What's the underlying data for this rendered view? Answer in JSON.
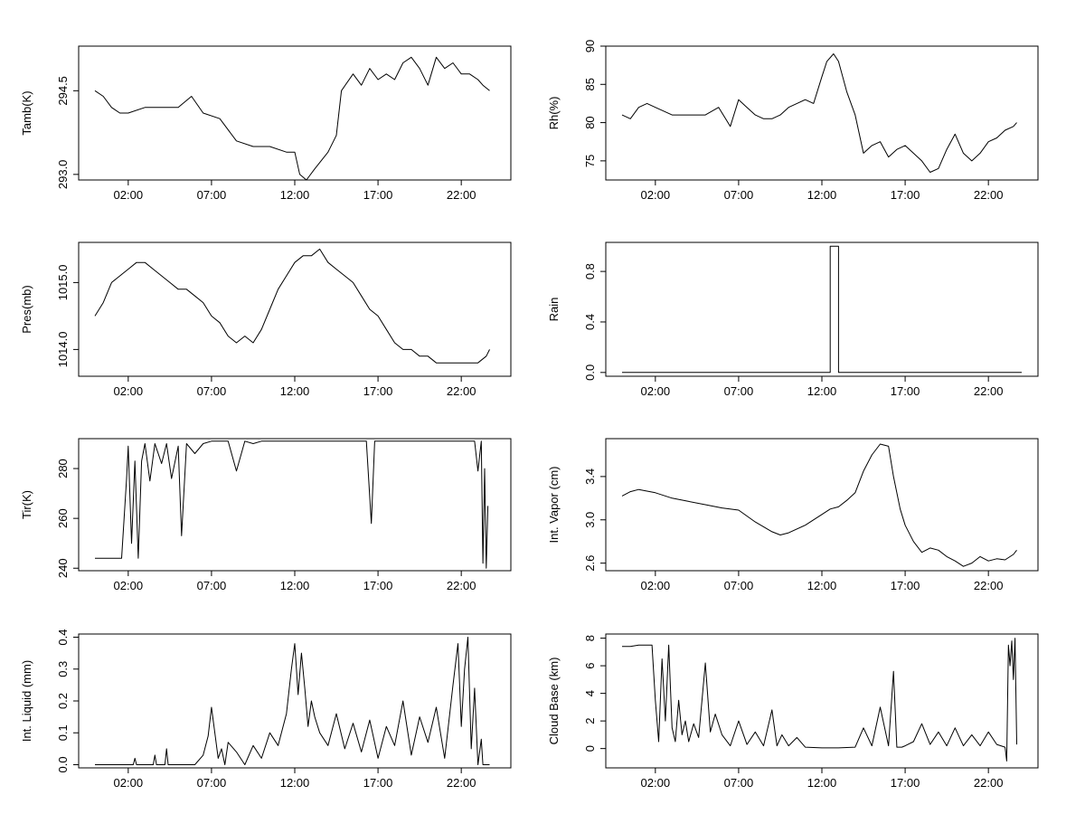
{
  "figure": {
    "background": "#ffffff",
    "line_color": "#000000"
  },
  "chart_data": [
    {
      "type": "line",
      "title": "",
      "xlabel": "",
      "ylabel": "Tamb(K)",
      "xlim": [
        0,
        24
      ],
      "x_tick_values": [
        2,
        7,
        12,
        17,
        22
      ],
      "x_tick_labels": [
        "02:00",
        "07:00",
        "12:00",
        "17:00",
        "22:00"
      ],
      "ylim": [
        292.9,
        295.3
      ],
      "y_tick_values": [
        293.0,
        294.5
      ],
      "y_tick_labels": [
        "293.0",
        "294.5"
      ],
      "series": [
        {
          "x": [
            0,
            0.5,
            1,
            1.5,
            2,
            3,
            4,
            5,
            5.8,
            6.5,
            7.5,
            8.5,
            9.5,
            10.5,
            11.5,
            12,
            12.3,
            12.7,
            13.2,
            14,
            14.5,
            14.8,
            15.5,
            16,
            16.5,
            17,
            17.5,
            18,
            18.5,
            19,
            19.5,
            20,
            20.5,
            21,
            21.5,
            22,
            22.5,
            23,
            23.3,
            23.7
          ],
          "y": [
            294.5,
            294.4,
            294.2,
            294.1,
            294.1,
            294.2,
            294.2,
            294.2,
            294.4,
            294.1,
            294.0,
            293.6,
            293.5,
            293.5,
            293.4,
            293.4,
            293.0,
            292.9,
            293.1,
            293.4,
            293.7,
            294.5,
            294.8,
            294.6,
            294.9,
            294.7,
            294.8,
            294.7,
            295.0,
            295.1,
            294.9,
            294.6,
            295.1,
            294.9,
            295.0,
            294.8,
            294.8,
            294.7,
            294.6,
            294.5
          ]
        }
      ]
    },
    {
      "type": "line",
      "title": "",
      "xlabel": "",
      "ylabel": "Rh(%)",
      "xlim": [
        0,
        24
      ],
      "x_tick_values": [
        2,
        7,
        12,
        17,
        22
      ],
      "x_tick_labels": [
        "02:00",
        "07:00",
        "12:00",
        "17:00",
        "22:00"
      ],
      "ylim": [
        72.5,
        90
      ],
      "y_tick_values": [
        75,
        80,
        85,
        90
      ],
      "y_tick_labels": [
        "75",
        "80",
        "85",
        "90"
      ],
      "series": [
        {
          "x": [
            0,
            0.5,
            1,
            1.5,
            2,
            3,
            4,
            5,
            5.8,
            6.5,
            7,
            7.5,
            8,
            8.5,
            9,
            9.5,
            10,
            10.5,
            11,
            11.5,
            12,
            12.3,
            12.7,
            13,
            13.5,
            14,
            14.5,
            15,
            15.5,
            16,
            16.5,
            17,
            17.5,
            18,
            18.5,
            19,
            19.5,
            20,
            20.5,
            21,
            21.5,
            22,
            22.5,
            23,
            23.5,
            23.7
          ],
          "y": [
            81.0,
            80.5,
            82.0,
            82.5,
            82.0,
            81.0,
            81.0,
            81.0,
            82.0,
            79.5,
            83.0,
            82.0,
            81.0,
            80.5,
            80.5,
            81.0,
            82.0,
            82.5,
            83.0,
            82.5,
            86.0,
            88.0,
            89.0,
            88.0,
            84.0,
            81.0,
            76.0,
            77.0,
            77.5,
            75.5,
            76.5,
            77.0,
            76.0,
            75.0,
            73.5,
            74.0,
            76.5,
            78.5,
            76.0,
            75.0,
            76.0,
            77.5,
            78.0,
            79.0,
            79.5,
            80.0
          ]
        }
      ]
    },
    {
      "type": "line",
      "title": "",
      "xlabel": "",
      "ylabel": "Pres(mb)",
      "xlim": [
        0,
        24
      ],
      "x_tick_values": [
        2,
        7,
        12,
        17,
        22
      ],
      "x_tick_labels": [
        "02:00",
        "07:00",
        "12:00",
        "17:00",
        "22:00"
      ],
      "ylim": [
        1013.6,
        1015.6
      ],
      "y_tick_values": [
        1014.0,
        1015.0
      ],
      "y_tick_labels": [
        "1014.0",
        "1015.0"
      ],
      "series": [
        {
          "x": [
            0,
            0.5,
            1,
            1.5,
            2,
            2.5,
            3,
            3.5,
            4,
            4.5,
            5,
            5.5,
            6,
            6.5,
            7,
            7.5,
            8,
            8.5,
            9,
            9.5,
            10,
            10.5,
            11,
            11.5,
            12,
            12.5,
            13,
            13.5,
            14,
            14.5,
            15,
            15.5,
            16,
            16.5,
            17,
            17.5,
            18,
            18.5,
            19,
            19.5,
            20,
            20.5,
            21,
            21.5,
            22,
            22.5,
            23,
            23.5,
            23.7
          ],
          "y": [
            1014.5,
            1014.7,
            1015.0,
            1015.1,
            1015.2,
            1015.3,
            1015.3,
            1015.2,
            1015.1,
            1015.0,
            1014.9,
            1014.9,
            1014.8,
            1014.7,
            1014.5,
            1014.4,
            1014.2,
            1014.1,
            1014.2,
            1014.1,
            1014.3,
            1014.6,
            1014.9,
            1015.1,
            1015.3,
            1015.4,
            1015.4,
            1015.5,
            1015.3,
            1015.2,
            1015.1,
            1015.0,
            1014.8,
            1014.6,
            1014.5,
            1014.3,
            1014.1,
            1014.0,
            1014.0,
            1013.9,
            1013.9,
            1013.8,
            1013.8,
            1013.8,
            1013.8,
            1013.8,
            1013.8,
            1013.9,
            1014.0
          ]
        }
      ]
    },
    {
      "type": "line",
      "title": "",
      "xlabel": "",
      "ylabel": "Rain",
      "xlim": [
        0,
        24
      ],
      "x_tick_values": [
        2,
        7,
        12,
        17,
        22
      ],
      "x_tick_labels": [
        "02:00",
        "07:00",
        "12:00",
        "17:00",
        "22:00"
      ],
      "ylim": [
        -0.03,
        1.03
      ],
      "y_tick_values": [
        0.0,
        0.4,
        0.8
      ],
      "y_tick_labels": [
        "0.0",
        "0.4",
        "0.8"
      ],
      "series": [
        {
          "x": [
            0,
            12.5,
            12.5,
            13.0,
            13.0,
            24
          ],
          "y": [
            0,
            0,
            1,
            1,
            0,
            0
          ]
        }
      ]
    },
    {
      "type": "line",
      "title": "",
      "xlabel": "",
      "ylabel": "Tir(K)",
      "xlim": [
        0,
        24
      ],
      "x_tick_values": [
        2,
        7,
        12,
        17,
        22
      ],
      "x_tick_labels": [
        "02:00",
        "07:00",
        "12:00",
        "17:00",
        "22:00"
      ],
      "ylim": [
        239,
        292
      ],
      "y_tick_values": [
        240,
        260,
        280
      ],
      "y_tick_labels": [
        "240",
        "260",
        "280"
      ],
      "series": [
        {
          "x": [
            0,
            1,
            1.6,
            1.9,
            2.0,
            2.2,
            2.4,
            2.6,
            2.8,
            3.0,
            3.3,
            3.6,
            4.0,
            4.3,
            4.6,
            5.0,
            5.2,
            5.5,
            6.0,
            6.5,
            7.0,
            8.0,
            8.5,
            9.0,
            9.5,
            10.0,
            12.0,
            14.0,
            15.5,
            16.0,
            16.3,
            16.6,
            16.8,
            17.2,
            18.0,
            19.0,
            20.0,
            21.0,
            22.0,
            22.8,
            23.0,
            23.2,
            23.3,
            23.4,
            23.5,
            23.6
          ],
          "y": [
            244,
            244,
            244,
            276,
            289,
            250,
            283,
            244,
            283,
            290,
            275,
            290,
            282,
            290,
            276,
            289,
            253,
            290,
            286,
            290,
            291,
            291,
            279,
            291,
            290,
            291,
            291,
            291,
            291,
            291,
            291,
            258,
            291,
            291,
            291,
            291,
            291,
            291,
            291,
            291,
            279,
            291,
            242,
            280,
            240,
            265
          ]
        }
      ]
    },
    {
      "type": "line",
      "title": "",
      "xlabel": "",
      "ylabel": "Int. Vapor (cm)",
      "xlim": [
        0,
        24
      ],
      "x_tick_values": [
        2,
        7,
        12,
        17,
        22
      ],
      "x_tick_labels": [
        "02:00",
        "07:00",
        "12:00",
        "17:00",
        "22:00"
      ],
      "ylim": [
        2.53,
        3.75
      ],
      "y_tick_values": [
        2.6,
        3.0,
        3.4
      ],
      "y_tick_labels": [
        "2.6",
        "3.0",
        "3.4"
      ],
      "series": [
        {
          "x": [
            0,
            0.5,
            1,
            2,
            3,
            4,
            5,
            6,
            7,
            8,
            9,
            9.5,
            10,
            11,
            12,
            12.5,
            13,
            13.5,
            14,
            14.5,
            15,
            15.5,
            16,
            16.3,
            16.7,
            17,
            17.5,
            18,
            18.5,
            19,
            19.5,
            20,
            20.5,
            21,
            21.5,
            22,
            22.5,
            23,
            23.5,
            23.7
          ],
          "y": [
            3.22,
            3.26,
            3.28,
            3.25,
            3.2,
            3.17,
            3.14,
            3.11,
            3.09,
            2.98,
            2.89,
            2.86,
            2.88,
            2.95,
            3.05,
            3.1,
            3.12,
            3.18,
            3.25,
            3.45,
            3.6,
            3.7,
            3.68,
            3.4,
            3.1,
            2.95,
            2.8,
            2.7,
            2.74,
            2.72,
            2.66,
            2.62,
            2.57,
            2.6,
            2.66,
            2.62,
            2.64,
            2.63,
            2.68,
            2.72
          ]
        }
      ]
    },
    {
      "type": "line",
      "title": "",
      "xlabel": "",
      "ylabel": "Int. Liquid (mm)",
      "xlim": [
        0,
        24
      ],
      "x_tick_values": [
        2,
        7,
        12,
        17,
        22
      ],
      "x_tick_labels": [
        "02:00",
        "07:00",
        "12:00",
        "17:00",
        "22:00"
      ],
      "ylim": [
        -0.01,
        0.41
      ],
      "y_tick_values": [
        0.0,
        0.1,
        0.2,
        0.3,
        0.4
      ],
      "y_tick_labels": [
        "0.0",
        "0.1",
        "0.2",
        "0.3",
        "0.4"
      ],
      "series": [
        {
          "x": [
            0,
            2.3,
            2.4,
            2.5,
            3.5,
            3.6,
            3.7,
            4.2,
            4.3,
            4.4,
            6.0,
            6.5,
            6.8,
            7.0,
            7.2,
            7.4,
            7.6,
            7.8,
            8.0,
            8.5,
            9.0,
            9.5,
            10.0,
            10.5,
            11.0,
            11.5,
            11.8,
            12.0,
            12.2,
            12.4,
            12.6,
            12.8,
            13.0,
            13.2,
            13.5,
            14.0,
            14.5,
            15.0,
            15.5,
            16.0,
            16.5,
            17.0,
            17.5,
            18.0,
            18.5,
            19.0,
            19.5,
            20.0,
            20.5,
            21.0,
            21.5,
            21.8,
            22.0,
            22.2,
            22.4,
            22.6,
            22.8,
            23.0,
            23.2,
            23.3,
            23.5,
            23.7
          ],
          "y": [
            0,
            0,
            0.02,
            0,
            0,
            0.03,
            0,
            0,
            0.05,
            0,
            0,
            0.03,
            0.09,
            0.18,
            0.1,
            0.02,
            0.05,
            0,
            0.07,
            0.04,
            0,
            0.06,
            0.02,
            0.1,
            0.06,
            0.16,
            0.3,
            0.38,
            0.22,
            0.35,
            0.24,
            0.12,
            0.2,
            0.15,
            0.1,
            0.06,
            0.16,
            0.05,
            0.13,
            0.04,
            0.14,
            0.02,
            0.12,
            0.06,
            0.2,
            0.03,
            0.15,
            0.07,
            0.18,
            0.02,
            0.25,
            0.38,
            0.12,
            0.3,
            0.4,
            0.05,
            0.24,
            0.0,
            0.08,
            0.0,
            0.0,
            0.0
          ]
        }
      ]
    },
    {
      "type": "line",
      "title": "",
      "xlabel": "",
      "ylabel": "Cloud Base (km)",
      "xlim": [
        0,
        24
      ],
      "x_tick_values": [
        2,
        7,
        12,
        17,
        22
      ],
      "x_tick_labels": [
        "02:00",
        "07:00",
        "12:00",
        "17:00",
        "22:00"
      ],
      "ylim": [
        -1.4,
        8.3
      ],
      "y_tick_values": [
        0,
        2,
        4,
        6,
        8
      ],
      "y_tick_labels": [
        "0",
        "2",
        "4",
        "6",
        "8"
      ],
      "series": [
        {
          "x": [
            0,
            0.5,
            1.0,
            1.5,
            1.8,
            2.0,
            2.2,
            2.4,
            2.6,
            2.8,
            3.0,
            3.2,
            3.4,
            3.6,
            3.8,
            4.0,
            4.3,
            4.6,
            5.0,
            5.3,
            5.6,
            6.0,
            6.5,
            7.0,
            7.5,
            8.0,
            8.5,
            9.0,
            9.3,
            9.6,
            10.0,
            10.5,
            11.0,
            12.0,
            13.0,
            14.0,
            14.5,
            15.0,
            15.5,
            16.0,
            16.3,
            16.5,
            16.8,
            17.0,
            17.5,
            18.0,
            18.5,
            19.0,
            19.5,
            20.0,
            20.5,
            21.0,
            21.5,
            22.0,
            22.5,
            23.0,
            23.1,
            23.2,
            23.3,
            23.4,
            23.5,
            23.6,
            23.7
          ],
          "y": [
            7.4,
            7.4,
            7.5,
            7.5,
            7.5,
            3.5,
            0.5,
            6.5,
            2.0,
            7.5,
            1.5,
            0.5,
            3.5,
            1.0,
            2.0,
            0.5,
            1.8,
            0.8,
            6.2,
            1.2,
            2.5,
            1.0,
            0.2,
            2.0,
            0.3,
            1.2,
            0.2,
            2.8,
            0.2,
            1.0,
            0.2,
            0.8,
            0.1,
            0.05,
            0.05,
            0.1,
            1.5,
            0.2,
            3.0,
            0.2,
            5.6,
            0.1,
            0.1,
            0.2,
            0.5,
            1.8,
            0.3,
            1.2,
            0.2,
            1.5,
            0.2,
            1.0,
            0.2,
            1.2,
            0.3,
            0.1,
            -0.9,
            7.5,
            6.0,
            7.8,
            5.0,
            8.0,
            0.3
          ]
        }
      ]
    }
  ]
}
